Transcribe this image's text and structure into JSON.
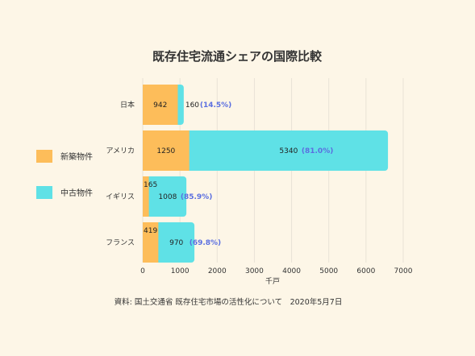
{
  "chart_data": {
    "type": "bar",
    "orientation": "horizontal",
    "stacked": true,
    "title": "既存住宅流通シェアの国際比較",
    "categories": [
      "日本",
      "アメリカ",
      "イギリス",
      "フランス"
    ],
    "series": [
      {
        "name": "新築物件",
        "values": [
          942,
          1250,
          165,
          419
        ],
        "color": "#fdbd5a"
      },
      {
        "name": "中古物件",
        "values": [
          160,
          5340,
          1008,
          970
        ],
        "color": "#5fe1e6"
      }
    ],
    "share_labels": [
      "(14.5%)",
      "(81.0%)",
      "(85.9%)",
      "(69.8%)"
    ],
    "xlabel": "千戸",
    "xlim": [
      0,
      7000
    ],
    "xticks": [
      0,
      1000,
      2000,
      3000,
      4000,
      5000,
      6000,
      7000
    ],
    "grid": true,
    "legend_position": "left",
    "source": "資料: 国土交通省 既存住宅市場の活性化について　2020年5月7日"
  },
  "colors": {
    "background": "#fdf6e7",
    "percent_text": "#5b6fe0"
  }
}
